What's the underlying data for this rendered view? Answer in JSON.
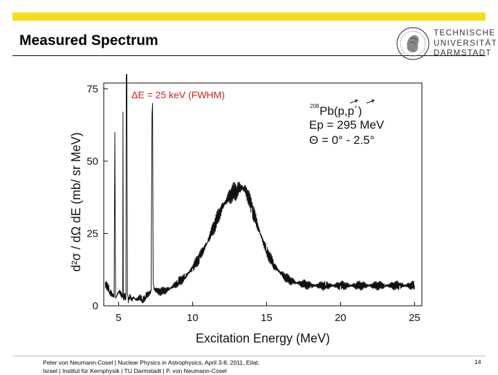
{
  "header": {
    "title": "Measured Spectrum",
    "accent_color": "#f4e01a"
  },
  "logo": {
    "line1": "TECHNISCHE",
    "line2": "UNIVERSITÄT",
    "line3": "DARMSTADT"
  },
  "footer": {
    "line1": "Peter von Neumann-Cosel | Nuclear Physics in Astrophysics, April 3-8, 2011, Eilat,",
    "line2": "Israel | Institut für Kernphysik | TU Darmstadt | P. von Neumann-Cosel",
    "page": "14"
  },
  "chart_data": {
    "type": "line",
    "title": "",
    "xlabel": "Excitation Energy (MeV)",
    "ylabel": "d²σ / dΩ dE (mb/ sr MeV)",
    "xlim": [
      4,
      25.5
    ],
    "ylim": [
      0,
      77
    ],
    "xticks": [
      5,
      10,
      15,
      20,
      25
    ],
    "yticks": [
      0,
      25,
      50,
      75
    ],
    "xtick_labels": [
      "5",
      "10",
      "15",
      "20",
      "25"
    ],
    "ytick_labels": [
      "0",
      "25",
      "50",
      "75"
    ],
    "annotations": {
      "resolution": "ΔE = 25 keV (FWHM)",
      "reaction_mass": "208",
      "reaction": "Pb(p,p´)",
      "beam_energy": "Ep = 295 MeV",
      "angle": "Θ = 0° - 2.5°"
    },
    "series": [
      {
        "name": "208Pb(p,p') spectrum",
        "x": [
          4.1,
          4.4,
          4.6,
          4.7,
          4.75,
          4.8,
          4.85,
          5.0,
          5.2,
          5.28,
          5.3,
          5.32,
          5.5,
          5.52,
          5.54,
          5.56,
          5.6,
          5.65,
          5.7,
          5.8,
          5.9,
          6.0,
          6.2,
          6.4,
          6.6,
          6.8,
          7.0,
          7.2,
          7.26,
          7.3,
          7.34,
          7.4,
          7.6,
          8.0,
          8.5,
          9.0,
          9.5,
          10.0,
          10.5,
          11.0,
          11.5,
          12.0,
          12.5,
          13.0,
          13.3,
          13.6,
          14.0,
          14.5,
          15.0,
          15.5,
          16.0,
          16.5,
          17.0,
          18.0,
          19.0,
          20.0,
          21.0,
          22.0,
          23.0,
          24.0,
          25.0
        ],
        "y": [
          8,
          5,
          4,
          3,
          60,
          3,
          3,
          5,
          4,
          3,
          67,
          3,
          3,
          80,
          75,
          80,
          4,
          2,
          3,
          3,
          2,
          3,
          2,
          3,
          2,
          3,
          4,
          5,
          66,
          70,
          8,
          6,
          5,
          5,
          6,
          8,
          10,
          13,
          17,
          22,
          28,
          34,
          38,
          40,
          41,
          40,
          34,
          26,
          19,
          14,
          11,
          9,
          8,
          7,
          7,
          7,
          7,
          7,
          7,
          7,
          7
        ]
      }
    ]
  }
}
